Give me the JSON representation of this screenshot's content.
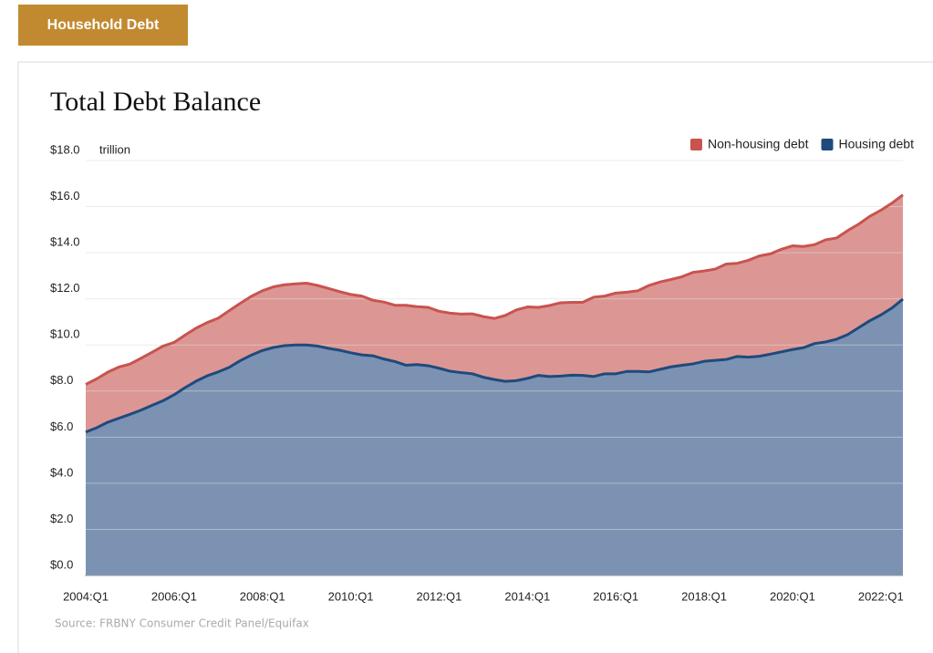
{
  "tab": {
    "label": "Household Debt"
  },
  "chart_data": {
    "type": "stacked-area",
    "title": "Total Debt Balance",
    "y_unit": "trillion",
    "source": "Source: FRBNY Consumer Credit Panel/Equifax",
    "legend": "top-right",
    "grid": true,
    "ylim": [
      0,
      18
    ],
    "yticks": [
      {
        "value": 0,
        "label": "$0.0"
      },
      {
        "value": 2,
        "label": "$2.0"
      },
      {
        "value": 4,
        "label": "$4.0"
      },
      {
        "value": 6,
        "label": "$6.0"
      },
      {
        "value": 8,
        "label": "$8.0"
      },
      {
        "value": 10,
        "label": "$10.0"
      },
      {
        "value": 12,
        "label": "$12.0"
      },
      {
        "value": 14,
        "label": "$14.0"
      },
      {
        "value": 16,
        "label": "$16.0"
      },
      {
        "value": 18,
        "label": "$18.0"
      }
    ],
    "categories": [
      "2004:Q1",
      null,
      null,
      null,
      null,
      null,
      null,
      null,
      "2006:Q1",
      null,
      null,
      null,
      null,
      null,
      null,
      null,
      "2008:Q1",
      null,
      null,
      null,
      null,
      null,
      null,
      null,
      "2010:Q1",
      null,
      null,
      null,
      null,
      null,
      null,
      null,
      "2012:Q1",
      null,
      null,
      null,
      null,
      null,
      null,
      null,
      "2014:Q1",
      null,
      null,
      null,
      null,
      null,
      null,
      null,
      "2016:Q1",
      null,
      null,
      null,
      null,
      null,
      null,
      null,
      "2018:Q1",
      null,
      null,
      null,
      null,
      null,
      null,
      null,
      "2020:Q1",
      null,
      null,
      null,
      null,
      null,
      null,
      null,
      "2022:Q1",
      null,
      null
    ],
    "series": [
      {
        "name": "Non-housing debt",
        "color": "#c9534f",
        "fill": "#dc9794",
        "values": [
          2.07,
          2.12,
          2.17,
          2.22,
          2.18,
          2.25,
          2.3,
          2.37,
          2.27,
          2.28,
          2.3,
          2.31,
          2.33,
          2.46,
          2.49,
          2.55,
          2.59,
          2.63,
          2.64,
          2.65,
          2.68,
          2.63,
          2.6,
          2.54,
          2.53,
          2.55,
          2.41,
          2.47,
          2.44,
          2.6,
          2.51,
          2.53,
          2.47,
          2.52,
          2.54,
          2.6,
          2.63,
          2.65,
          2.86,
          3.07,
          3.1,
          2.95,
          3.08,
          3.18,
          3.16,
          3.17,
          3.44,
          3.37,
          3.5,
          3.44,
          3.5,
          3.75,
          3.79,
          3.79,
          3.84,
          3.97,
          3.92,
          3.96,
          4.14,
          4.04,
          4.2,
          4.35,
          4.35,
          4.45,
          4.5,
          4.39,
          4.29,
          4.43,
          4.39,
          4.51,
          4.49,
          4.53,
          4.54,
          4.55,
          4.52
        ]
      },
      {
        "name": "Housing debt",
        "color": "#1f4a7c",
        "fill": "#7b92b3",
        "values": [
          6.22,
          6.41,
          6.65,
          6.82,
          6.99,
          7.17,
          7.38,
          7.58,
          7.84,
          8.15,
          8.43,
          8.66,
          8.83,
          9.03,
          9.32,
          9.56,
          9.76,
          9.89,
          9.97,
          10.0,
          10.0,
          9.95,
          9.85,
          9.77,
          9.66,
          9.57,
          9.53,
          9.39,
          9.28,
          9.12,
          9.15,
          9.1,
          8.99,
          8.86,
          8.8,
          8.75,
          8.6,
          8.5,
          8.42,
          8.45,
          8.55,
          8.68,
          8.63,
          8.65,
          8.69,
          8.68,
          8.63,
          8.75,
          8.75,
          8.85,
          8.85,
          8.83,
          8.94,
          9.05,
          9.12,
          9.18,
          9.29,
          9.33,
          9.37,
          9.5,
          9.47,
          9.51,
          9.6,
          9.7,
          9.8,
          9.88,
          10.06,
          10.13,
          10.25,
          10.45,
          10.75,
          11.05,
          11.3,
          11.6,
          11.99
        ]
      }
    ]
  }
}
